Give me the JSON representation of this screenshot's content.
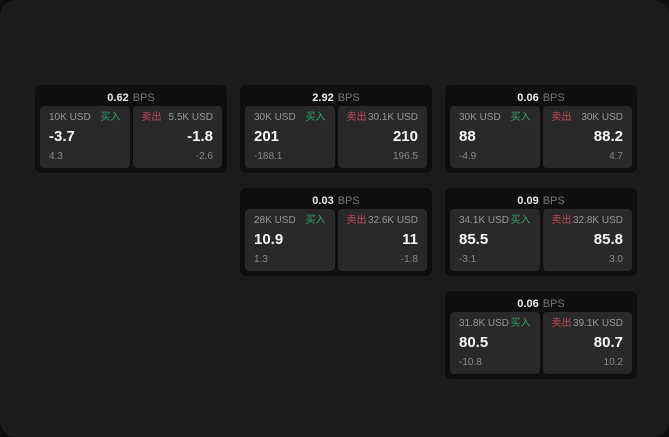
{
  "labels": {
    "bps_unit": "BPS",
    "buy": "买入",
    "sell": "卖出"
  },
  "colors": {
    "buy_accent": "#35a369",
    "sell_accent": "#c04a5c",
    "panel_background": "#1c1c1e",
    "card_background": "#0f0f11",
    "subpanel_background": "#29292b",
    "primary_text": "#f7f7f8",
    "muted_text": "#98989d"
  },
  "cards": [
    {
      "row": 1,
      "col": 1,
      "bps": "0.62",
      "buy": {
        "size": "10K USD",
        "value": "-3.7",
        "delta": "4.3"
      },
      "sell": {
        "size": "5.5K USD",
        "value": "-1.8",
        "delta": "-2.6"
      }
    },
    {
      "row": 1,
      "col": 2,
      "bps": "2.92",
      "buy": {
        "size": "30K USD",
        "value": "201",
        "delta": "-188.1"
      },
      "sell": {
        "size": "30.1K USD",
        "value": "210",
        "delta": "196.5"
      }
    },
    {
      "row": 1,
      "col": 3,
      "bps": "0.06",
      "buy": {
        "size": "30K USD",
        "value": "88",
        "delta": "-4.9"
      },
      "sell": {
        "size": "30K USD",
        "value": "88.2",
        "delta": "4.7"
      }
    },
    {
      "row": 2,
      "col": 2,
      "bps": "0.03",
      "buy": {
        "size": "28K USD",
        "value": "10.9",
        "delta": "1.3"
      },
      "sell": {
        "size": "32.6K USD",
        "value": "11",
        "delta": "-1.8"
      }
    },
    {
      "row": 2,
      "col": 3,
      "bps": "0.09",
      "buy": {
        "size": "34.1K USD",
        "value": "85.5",
        "delta": "-3.1"
      },
      "sell": {
        "size": "32.8K USD",
        "value": "85.8",
        "delta": "3.0"
      }
    },
    {
      "row": 3,
      "col": 3,
      "bps": "0.06",
      "buy": {
        "size": "31.8K USD",
        "value": "80.5",
        "delta": "-10.8"
      },
      "sell": {
        "size": "39.1K USD",
        "value": "80.7",
        "delta": "10.2"
      }
    }
  ]
}
